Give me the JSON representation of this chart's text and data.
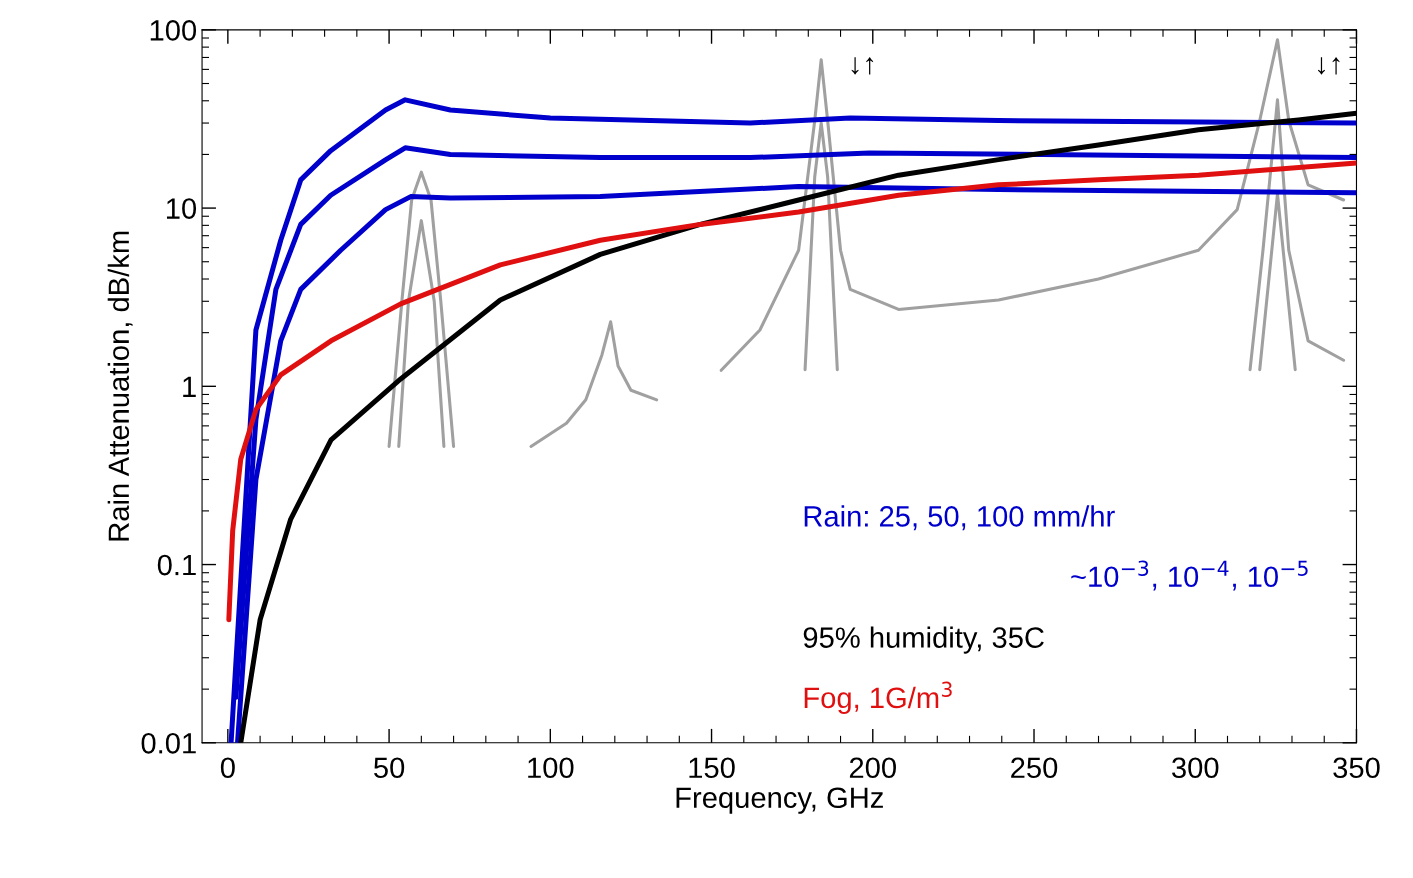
{
  "chart_data": {
    "type": "line",
    "xlabel": "Frequency, GHz",
    "ylabel": "Rain Attenuation, dB/km",
    "log": "y",
    "xlim": [
      -8,
      350
    ],
    "ylim": [
      0.01,
      100
    ],
    "xticks": [
      0,
      50,
      100,
      150,
      200,
      250,
      300,
      350
    ],
    "yticks": [
      0.01,
      0.1,
      1,
      10,
      100
    ],
    "grid": false,
    "legend": "bottom right",
    "marker": "none",
    "line_style": "solid",
    "series": [
      {
        "color": "#0000cc",
        "x": [
          3,
          8.7,
          16.4,
          22.6,
          35,
          48.9,
          56.7,
          69,
          115.5,
          177,
          239,
          350
        ],
        "values": [
          0.01,
          0.3,
          1.8,
          3.5,
          5.8,
          9.8,
          11.6,
          11.4,
          11.6,
          13.2,
          12.7,
          12.2
        ]
      },
      {
        "color": "#0000cc",
        "x": [
          2.5,
          8.7,
          14.9,
          22.6,
          31.9,
          49,
          55,
          69,
          115.5,
          162,
          199,
          350
        ],
        "values": [
          0.018,
          0.65,
          3.5,
          8.1,
          11.8,
          18.7,
          21.8,
          20,
          19.2,
          19.2,
          20.4,
          19.2
        ]
      },
      {
        "color": "#0000cc",
        "x": [
          1,
          8.7,
          16.4,
          22.6,
          31.9,
          48.9,
          55,
          69,
          100,
          162,
          193,
          239,
          350
        ],
        "values": [
          0.01,
          2.07,
          6.6,
          14.4,
          21,
          35.5,
          40.5,
          35.5,
          32,
          30,
          32,
          31,
          30
        ]
      },
      {
        "name": "95% humidity, 35C",
        "color": "#000000",
        "x": [
          4,
          10,
          19.5,
          32,
          53.6,
          84.5,
          115.5,
          146.5,
          177,
          208,
          239,
          270,
          301,
          332,
          350
        ],
        "values": [
          0.01,
          0.049,
          0.18,
          0.5,
          1.1,
          3.05,
          5.5,
          8.1,
          11.1,
          15.3,
          18.7,
          22.6,
          27.5,
          31.2,
          34
        ]
      },
      {
        "name": "Fog, 1G/m$^{3}$",
        "color": "#e01010",
        "x": [
          0.3,
          1.5,
          4,
          8.7,
          16.4,
          32,
          53.6,
          84.5,
          115.5,
          146.5,
          177,
          208,
          239,
          270,
          301,
          350
        ],
        "values": [
          0.049,
          0.155,
          0.39,
          0.74,
          1.16,
          1.8,
          2.9,
          4.8,
          6.6,
          8.1,
          9.5,
          11.8,
          13.5,
          14.4,
          15.3,
          17.9
        ]
      },
      {
        "color": "#a0a0a0",
        "x": [
          50,
          54,
          57,
          60,
          63,
          66,
          70
        ],
        "values": [
          0.46,
          3.05,
          11.1,
          15.9,
          11.1,
          3.05,
          0.46
        ]
      },
      {
        "color": "#a0a0a0",
        "x": [
          53,
          56,
          60,
          64,
          67
        ],
        "values": [
          0.46,
          3,
          8.5,
          3,
          0.46
        ]
      },
      {
        "color": "#a0a0a0",
        "x": [
          94,
          105,
          111,
          116,
          118.7,
          121,
          125,
          133
        ],
        "values": [
          0.46,
          0.62,
          0.84,
          1.5,
          2.3,
          1.3,
          0.95,
          0.84
        ]
      },
      {
        "color": "#a0a0a0",
        "x": [
          153,
          165,
          177,
          182,
          184,
          186,
          190,
          193,
          208,
          239,
          270,
          301,
          313,
          320,
          325.5,
          329,
          335,
          346
        ],
        "values": [
          1.23,
          2.07,
          5.8,
          31,
          68,
          31,
          5.8,
          3.5,
          2.7,
          3.05,
          4,
          5.8,
          9.8,
          31,
          88,
          31,
          13.5,
          11.1
        ]
      },
      {
        "color": "#a0a0a0",
        "x": [
          179,
          182,
          184,
          186,
          189
        ],
        "values": [
          1.24,
          15,
          30,
          15,
          1.24
        ]
      },
      {
        "color": "#a0a0a0",
        "x": [
          317,
          321,
          325.5,
          329,
          335,
          346
        ],
        "values": [
          1.24,
          5.8,
          40.5,
          5.8,
          1.8,
          1.4
        ]
      },
      {
        "color": "#a0a0a0",
        "x": [
          320,
          325.5,
          331
        ],
        "values": [
          1.24,
          12,
          1.24
        ]
      }
    ],
    "annotations": [
      "Rain: 25, 50, 100 mm/hr",
      "~10$^{−3}$, 10$^{−4}$, 10$^{−5}$",
      "↓↑",
      "↓↑"
    ]
  }
}
